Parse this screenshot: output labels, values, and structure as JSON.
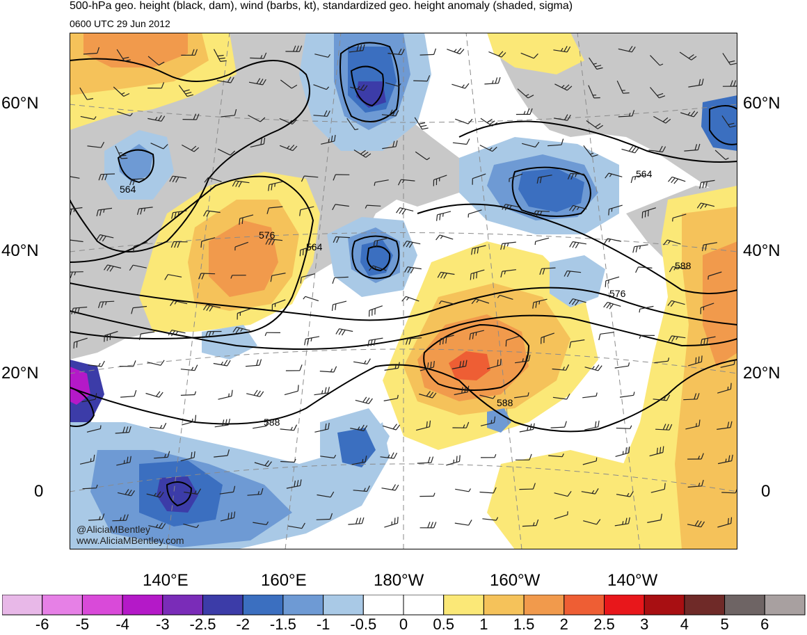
{
  "header": {
    "title": "500-hPa geo. height (black, dam), wind (barbs, kt), standardized geo. height anomaly (shaded, sigma)",
    "subtitle": "0600 UTC 29 Jun 2012"
  },
  "map": {
    "lat_labels_left": [
      "60°N",
      "40°N",
      "20°N",
      "0"
    ],
    "lat_labels_right": [
      "60°N",
      "40°N",
      "20°N",
      "0"
    ],
    "lon_labels": [
      "140°E",
      "160°E",
      "180°W",
      "160°W",
      "140°W"
    ],
    "contour_labels": [
      "564",
      "576",
      "564",
      "564",
      "588",
      "576",
      "588",
      "588"
    ],
    "credit_handle": "@AliciaMBentley",
    "credit_site": "www.AliciaMBentley.com",
    "colors": {
      "land": "#c8c8c8",
      "contour": "#000000",
      "coastline": "#555555",
      "gridline": "#8a8a8a"
    }
  },
  "colorbar": {
    "labels": [
      "-6",
      "-5",
      "-4",
      "-3",
      "-2.5",
      "-2",
      "-1.5",
      "-1",
      "-0.5",
      "0",
      "0.5",
      "1",
      "1.5",
      "2",
      "2.5",
      "3",
      "4",
      "5",
      "6"
    ],
    "colors": [
      "#e8b8e8",
      "#e680e6",
      "#d94ad9",
      "#b419c8",
      "#7a2cb8",
      "#3c3ca8",
      "#3b6fc0",
      "#6e9ad4",
      "#a9c9e6",
      "#ffffff",
      "#ffffff",
      "#fbe877",
      "#f5c25a",
      "#f19a4c",
      "#ee5e34",
      "#e8171b",
      "#a80f12",
      "#6f2a28",
      "#6e6464",
      "#a8a0a0"
    ]
  }
}
